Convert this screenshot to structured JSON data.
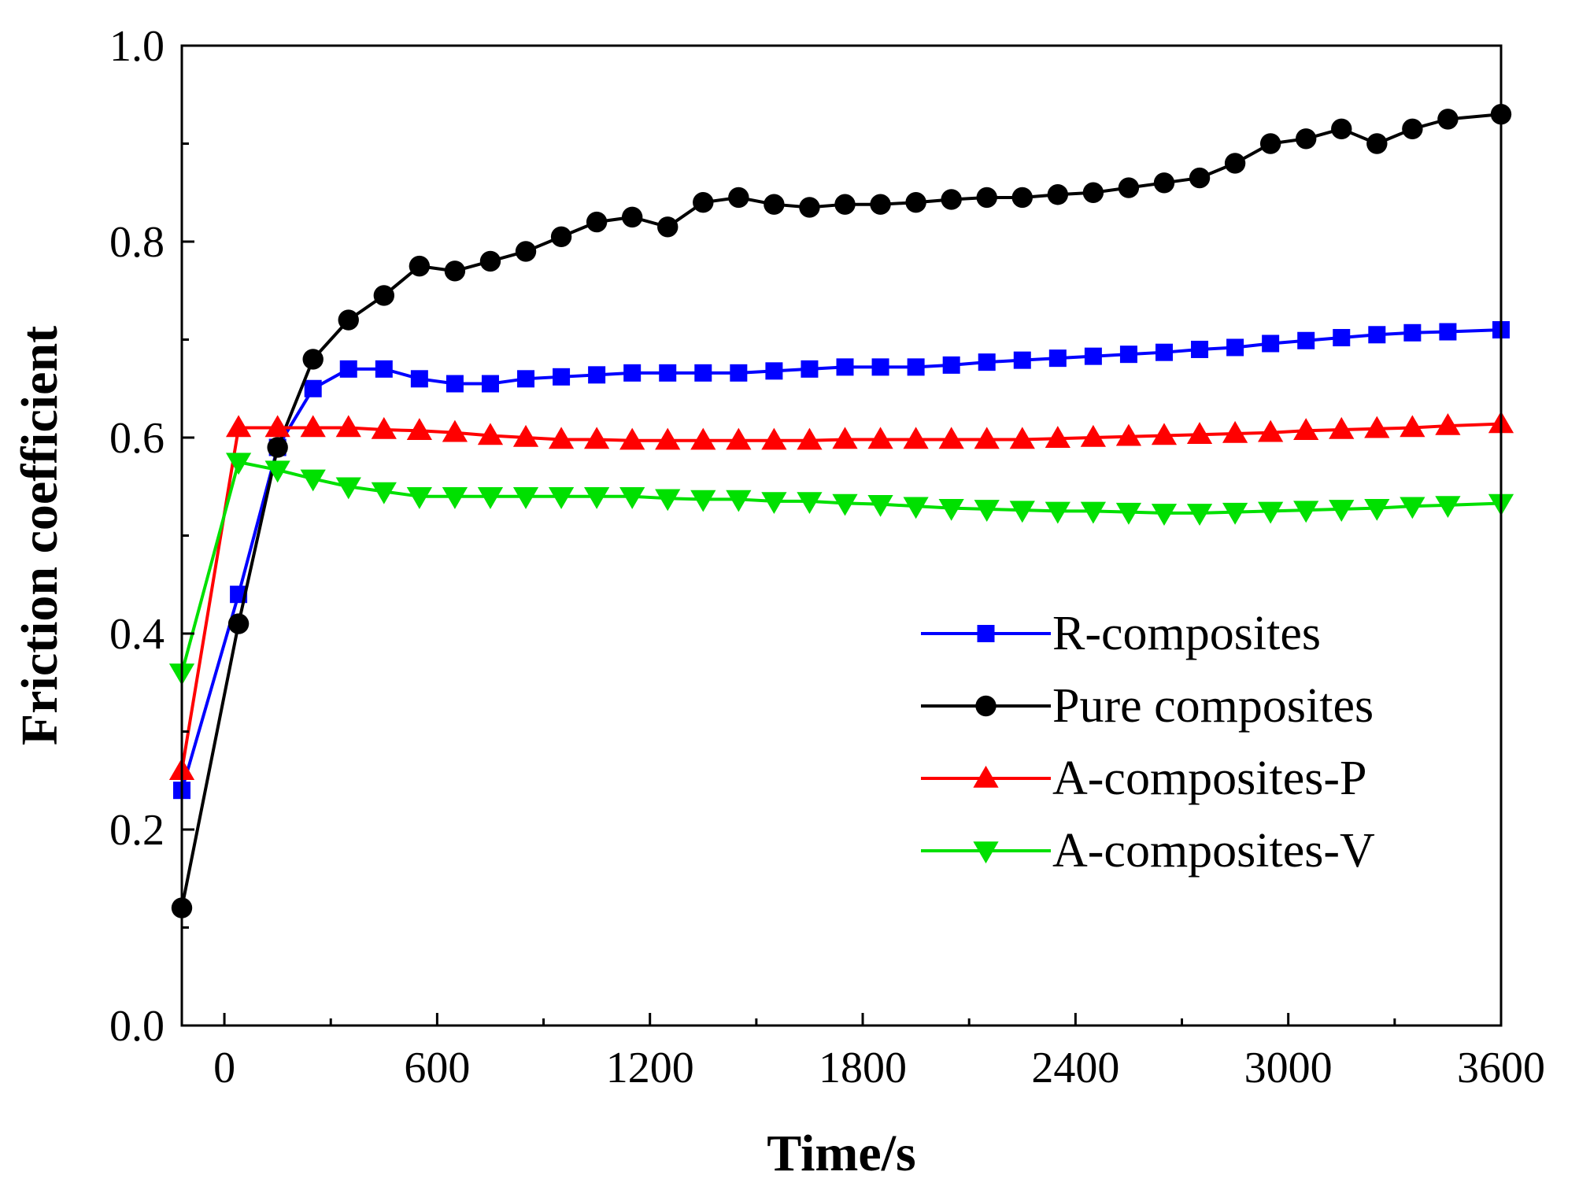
{
  "chart_data": {
    "type": "line",
    "title": "",
    "xlabel": "Time/s",
    "ylabel": "Friction coefficient",
    "xlim": [
      -120,
      3600
    ],
    "ylim": [
      0.0,
      1.0
    ],
    "xticks": [
      0,
      600,
      1200,
      1800,
      2400,
      3000,
      3600
    ],
    "xtick_labels": [
      "0",
      "600",
      "1200",
      "1800",
      "2400",
      "3000",
      "3600"
    ],
    "yticks": [
      0.0,
      0.2,
      0.4,
      0.6,
      0.8,
      1.0
    ],
    "ytick_labels": [
      "0.0",
      "0.2",
      "0.4",
      "0.6",
      "0.8",
      "1.0"
    ],
    "grid": false,
    "legend_position": "center-right",
    "series": [
      {
        "name": "R-composites",
        "color": "#0000ff",
        "marker": "square",
        "x": [
          -120,
          40,
          150,
          250,
          350,
          450,
          550,
          650,
          750,
          850,
          950,
          1050,
          1150,
          1250,
          1350,
          1450,
          1550,
          1650,
          1750,
          1850,
          1950,
          2050,
          2150,
          2250,
          2350,
          2450,
          2550,
          2650,
          2750,
          2850,
          2950,
          3050,
          3150,
          3250,
          3350,
          3450,
          3600
        ],
        "y": [
          0.24,
          0.44,
          0.59,
          0.65,
          0.67,
          0.67,
          0.66,
          0.655,
          0.655,
          0.66,
          0.662,
          0.664,
          0.666,
          0.666,
          0.666,
          0.666,
          0.668,
          0.67,
          0.672,
          0.672,
          0.672,
          0.674,
          0.677,
          0.679,
          0.681,
          0.683,
          0.685,
          0.687,
          0.69,
          0.692,
          0.696,
          0.699,
          0.702,
          0.705,
          0.707,
          0.708,
          0.71
        ]
      },
      {
        "name": "Pure composites",
        "color": "#000000",
        "marker": "circle",
        "x": [
          -120,
          40,
          150,
          250,
          350,
          450,
          550,
          650,
          750,
          850,
          950,
          1050,
          1150,
          1250,
          1350,
          1450,
          1550,
          1650,
          1750,
          1850,
          1950,
          2050,
          2150,
          2250,
          2350,
          2450,
          2550,
          2650,
          2750,
          2850,
          2950,
          3050,
          3150,
          3250,
          3350,
          3450,
          3600
        ],
        "y": [
          0.12,
          0.41,
          0.59,
          0.68,
          0.72,
          0.745,
          0.775,
          0.77,
          0.78,
          0.79,
          0.805,
          0.82,
          0.825,
          0.815,
          0.84,
          0.845,
          0.838,
          0.835,
          0.838,
          0.838,
          0.84,
          0.843,
          0.845,
          0.845,
          0.848,
          0.85,
          0.855,
          0.86,
          0.865,
          0.88,
          0.9,
          0.905,
          0.915,
          0.9,
          0.915,
          0.925,
          0.93
        ]
      },
      {
        "name": "A-composites-P",
        "color": "#ff0000",
        "marker": "triangle-up",
        "x": [
          -120,
          40,
          150,
          250,
          350,
          450,
          550,
          650,
          750,
          850,
          950,
          1050,
          1150,
          1250,
          1350,
          1450,
          1550,
          1650,
          1750,
          1850,
          1950,
          2050,
          2150,
          2250,
          2350,
          2450,
          2550,
          2650,
          2750,
          2850,
          2950,
          3050,
          3150,
          3250,
          3350,
          3450,
          3600
        ],
        "y": [
          0.26,
          0.61,
          0.61,
          0.61,
          0.61,
          0.608,
          0.607,
          0.605,
          0.602,
          0.6,
          0.598,
          0.598,
          0.597,
          0.597,
          0.597,
          0.597,
          0.597,
          0.597,
          0.598,
          0.598,
          0.598,
          0.598,
          0.598,
          0.598,
          0.599,
          0.6,
          0.601,
          0.602,
          0.603,
          0.604,
          0.605,
          0.607,
          0.608,
          0.609,
          0.61,
          0.612,
          0.614
        ]
      },
      {
        "name": "A-composites-V",
        "color": "#00e000",
        "marker": "triangle-down",
        "x": [
          -120,
          40,
          150,
          250,
          350,
          450,
          550,
          650,
          750,
          850,
          950,
          1050,
          1150,
          1250,
          1350,
          1450,
          1550,
          1650,
          1750,
          1850,
          1950,
          2050,
          2150,
          2250,
          2350,
          2450,
          2550,
          2650,
          2750,
          2850,
          2950,
          3050,
          3150,
          3250,
          3350,
          3450,
          3600
        ],
        "y": [
          0.36,
          0.575,
          0.567,
          0.558,
          0.55,
          0.545,
          0.54,
          0.54,
          0.54,
          0.54,
          0.54,
          0.54,
          0.54,
          0.538,
          0.537,
          0.537,
          0.535,
          0.535,
          0.533,
          0.532,
          0.53,
          0.528,
          0.527,
          0.526,
          0.525,
          0.525,
          0.524,
          0.523,
          0.523,
          0.524,
          0.525,
          0.526,
          0.527,
          0.528,
          0.53,
          0.531,
          0.533
        ]
      }
    ]
  }
}
